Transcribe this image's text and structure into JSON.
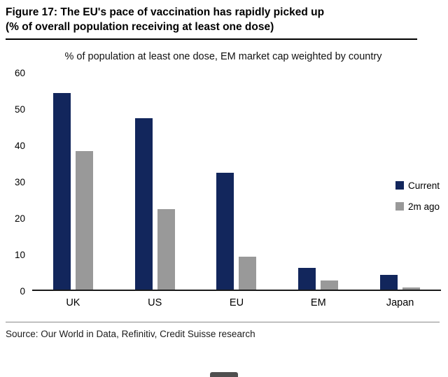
{
  "figure": {
    "title_line1": "Figure 17: The EU's pace of vaccination has rapidly picked up",
    "title_line2": "(% of overall population receiving at least one dose)",
    "source": "Source: Our World in Data, Refinitiv, Credit Suisse research"
  },
  "chart_data": {
    "type": "bar",
    "title": "% of population at least one dose, EM market cap weighted by country",
    "categories": [
      "UK",
      "US",
      "EU",
      "EM",
      "Japan"
    ],
    "series": [
      {
        "name": "Current",
        "color": "#12265c",
        "values": [
          54,
          47,
          32,
          6,
          4
        ]
      },
      {
        "name": "2m ago",
        "color": "#999999",
        "values": [
          38,
          22,
          9,
          2.5,
          0.5
        ]
      }
    ],
    "ylabel": "",
    "xlabel": "",
    "ylim": [
      0,
      60
    ],
    "y_ticks": [
      0,
      10,
      20,
      30,
      40,
      50,
      60
    ],
    "grid": false,
    "legend_position": "right-middle"
  }
}
